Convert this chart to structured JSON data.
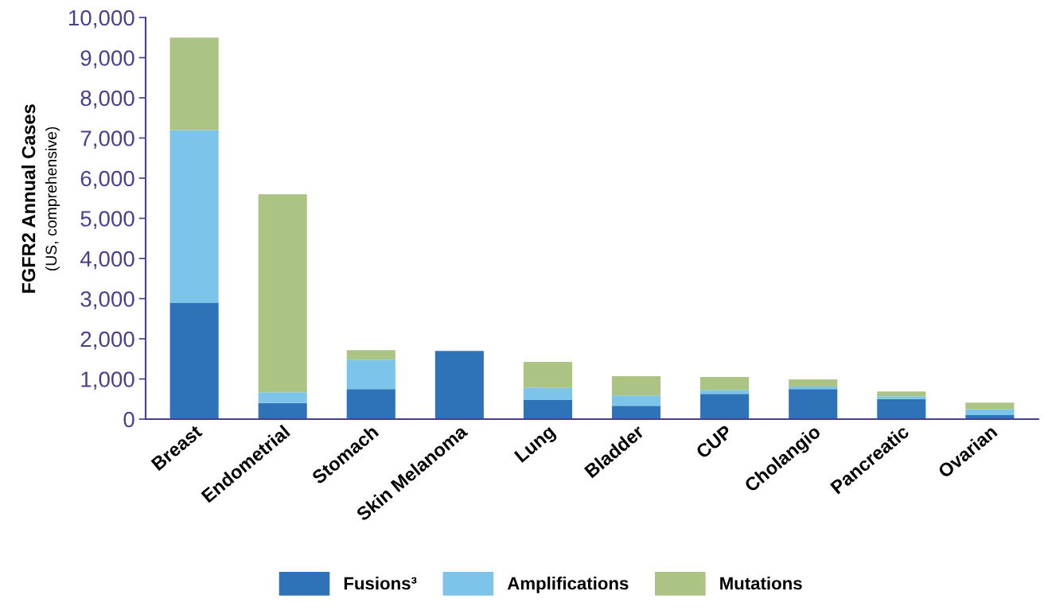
{
  "chart_data": {
    "type": "bar",
    "stacked": true,
    "ylabel": "FGFR2 Annual Cases\n(US, comprehensive)",
    "categories": [
      "Breast",
      "Endometrial",
      "Stomach",
      "Skin Melanoma",
      "Lung",
      "Bladder",
      "CUP",
      "Cholangio",
      "Pancreatic",
      "Ovarian"
    ],
    "series": [
      {
        "name": "Fusions³",
        "color": "#2e72b8",
        "values": [
          2890,
          400,
          750,
          1700,
          475,
          330,
          630,
          750,
          500,
          100
        ]
      },
      {
        "name": "Amplifications",
        "color": "#7cc4ea",
        "values": [
          4310,
          270,
          730,
          null,
          300,
          260,
          100,
          60,
          70,
          150
        ]
      },
      {
        "name": "Mutations",
        "color": "#abc383",
        "values": [
          2300,
          4930,
          240,
          null,
          650,
          480,
          320,
          180,
          120,
          160
        ]
      }
    ],
    "ylim": [
      0,
      10000
    ],
    "yticks": [
      {
        "value": 0,
        "label": "0"
      },
      {
        "value": 1000,
        "label": "1,000"
      },
      {
        "value": 2000,
        "label": "2,000"
      },
      {
        "value": 3000,
        "label": "3,000"
      },
      {
        "value": 4000,
        "label": "4,000"
      },
      {
        "value": 5000,
        "label": "5,000"
      },
      {
        "value": 6000,
        "label": "6,000"
      },
      {
        "value": 7000,
        "label": "7,000"
      },
      {
        "value": 8000,
        "label": "8,000"
      },
      {
        "value": 9000,
        "label": "9,000"
      },
      {
        "value": 10000,
        "label": "10,000"
      }
    ],
    "grid": false,
    "legend": "bottom"
  }
}
